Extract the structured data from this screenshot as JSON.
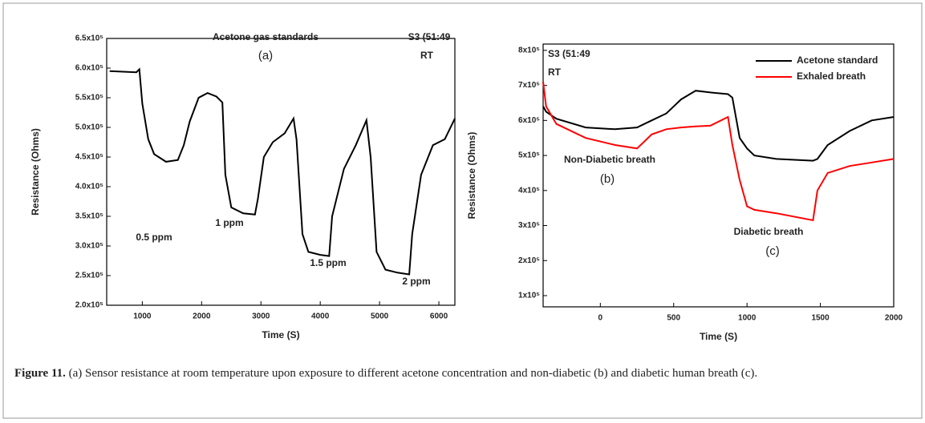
{
  "chart_data": [
    {
      "type": "line",
      "xlabel": "Time (S)",
      "ylabel": "Resistance (Ohms)",
      "xlim": [
        400,
        6270
      ],
      "xticks": [
        1000,
        2000,
        3000,
        4000,
        5000,
        6000
      ],
      "ylim": [
        200000,
        650000
      ],
      "yticks": [
        {
          "value": 200000,
          "label": "2.0x10⁵"
        },
        {
          "value": 250000,
          "label": "2.5x10⁵"
        },
        {
          "value": 300000,
          "label": "3.0x10⁵"
        },
        {
          "value": 350000,
          "label": "3.5x10⁵"
        },
        {
          "value": 400000,
          "label": "4.0x10⁵"
        },
        {
          "value": 450000,
          "label": "4.5x10⁵"
        },
        {
          "value": 500000,
          "label": "5.0x10⁵"
        },
        {
          "value": 550000,
          "label": "5.5x10⁵"
        },
        {
          "value": 600000,
          "label": "6.0x10⁵"
        },
        {
          "value": 650000,
          "label": "6.5x10⁵"
        }
      ],
      "x": [
        450,
        900,
        950,
        1000,
        1100,
        1200,
        1400,
        1600,
        1700,
        1800,
        1950,
        2100,
        2250,
        2350,
        2400,
        2500,
        2700,
        2900,
        2950,
        3050,
        3200,
        3400,
        3550,
        3600,
        3700,
        3800,
        4000,
        4150,
        4200,
        4400,
        4600,
        4780,
        4850,
        4950,
        5100,
        5300,
        5500,
        5550,
        5700,
        5900,
        6100,
        6270
      ],
      "series": [
        {
          "color": "#000000",
          "values": [
            595000,
            593000,
            598000,
            540000,
            480000,
            455000,
            442000,
            445000,
            470000,
            510000,
            550000,
            558000,
            552000,
            542000,
            420000,
            365000,
            355000,
            353000,
            380000,
            450000,
            475000,
            490000,
            515000,
            480000,
            320000,
            290000,
            285000,
            283000,
            350000,
            430000,
            470000,
            512000,
            450000,
            290000,
            260000,
            255000,
            252000,
            320000,
            420000,
            470000,
            480000,
            515000
          ]
        }
      ],
      "annotations": [
        "Acetone gas standards",
        "(a)",
        "S3 (51:49",
        "RT",
        "0.5 ppm",
        "1 ppm",
        "1.5 ppm",
        "2 ppm"
      ]
    },
    {
      "type": "line",
      "xlabel": "Time (S)",
      "ylabel": "Resistance (Ohms)",
      "xlim": [
        -390,
        2000
      ],
      "xticks": [
        0,
        500,
        1000,
        1500,
        2000
      ],
      "ylim": [
        68000,
        818000
      ],
      "yticks": [
        {
          "value": 100000,
          "label": "1x10⁵"
        },
        {
          "value": 200000,
          "label": "2x10⁵"
        },
        {
          "value": 300000,
          "label": "3x10⁵"
        },
        {
          "value": 400000,
          "label": "4x10⁵"
        },
        {
          "value": 500000,
          "label": "5x10⁵"
        },
        {
          "value": 600000,
          "label": "6x10⁵"
        },
        {
          "value": 700000,
          "label": "7x10⁵"
        },
        {
          "value": 800000,
          "label": "8x10⁵"
        }
      ],
      "x": [
        -390,
        -370,
        -300,
        -100,
        100,
        250,
        300,
        350,
        450,
        550,
        650,
        750,
        870,
        900,
        950,
        1000,
        1050,
        1200,
        1450,
        1480,
        1550,
        1700,
        1850,
        2000
      ],
      "series": [
        {
          "name": "Acetone standard",
          "color": "#000000",
          "values": [
            640000,
            625000,
            605000,
            580000,
            575000,
            580000,
            590000,
            600000,
            620000,
            660000,
            685000,
            680000,
            675000,
            665000,
            550000,
            520000,
            500000,
            490000,
            485000,
            490000,
            530000,
            570000,
            600000,
            610000
          ]
        },
        {
          "name": "Exhaled breath",
          "color": "#ff0000",
          "values": [
            710000,
            640000,
            590000,
            550000,
            530000,
            520000,
            540000,
            560000,
            575000,
            580000,
            583000,
            585000,
            610000,
            530000,
            430000,
            355000,
            345000,
            335000,
            315000,
            400000,
            450000,
            470000,
            480000,
            490000
          ]
        }
      ],
      "annotations": [
        "S3 (51:49",
        "RT",
        "Non-Diabetic breath",
        "(b)",
        "Diabetic breath",
        "(c)"
      ]
    }
  ],
  "caption": {
    "label": "Figure 11.",
    "text": " (a) Sensor resistance at room temperature upon exposure to different acetone concentration and non-diabetic (b) and diabetic human breath (c)."
  }
}
